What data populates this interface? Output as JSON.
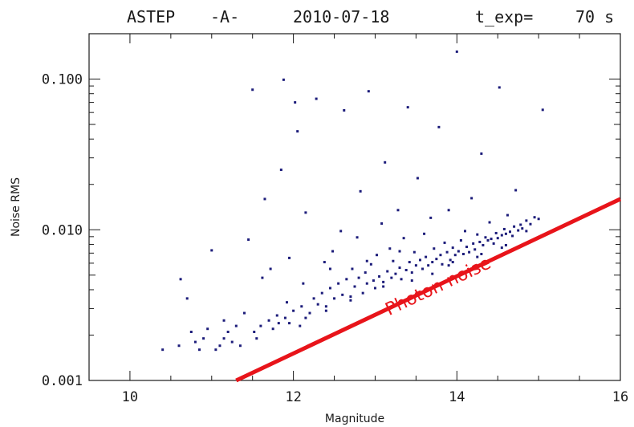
{
  "chart_data": {
    "type": "scatter",
    "title": {
      "name": "ASTEP",
      "camera": "-A-",
      "date": "2010-07-18",
      "exposure_label": "t_exp=",
      "exposure_value": "70 s"
    },
    "xlabel": "Magnitude",
    "ylabel": "Noise RMS",
    "x_scale": "linear",
    "y_scale": "log",
    "xlim": [
      9.5,
      16
    ],
    "ylim": [
      0.001,
      0.2
    ],
    "x_ticks": [
      10,
      12,
      14,
      16
    ],
    "x_tick_labels": [
      "10",
      "12",
      "14",
      "16"
    ],
    "y_ticks": [
      0.001,
      0.01,
      0.1
    ],
    "y_tick_labels": [
      "0.001",
      "0.010",
      "0.100"
    ],
    "grid": false,
    "marker_color": "#1c1c7a",
    "annotation": {
      "text": "Photon noise",
      "color": "#e8141a",
      "line": {
        "x": [
          11.3,
          16.0
        ],
        "y": [
          0.001,
          0.016
        ]
      }
    },
    "points": [
      [
        10.4,
        0.0016
      ],
      [
        10.6,
        0.0017
      ],
      [
        10.62,
        0.0047
      ],
      [
        10.7,
        0.0035
      ],
      [
        10.8,
        0.0018
      ],
      [
        10.85,
        0.0016
      ],
      [
        10.9,
        0.0019
      ],
      [
        10.95,
        0.0022
      ],
      [
        11.0,
        0.0073
      ],
      [
        11.05,
        0.0016
      ],
      [
        11.1,
        0.0017
      ],
      [
        11.15,
        0.0019
      ],
      [
        11.2,
        0.0021
      ],
      [
        11.25,
        0.0018
      ],
      [
        11.3,
        0.0023
      ],
      [
        11.35,
        0.0017
      ],
      [
        11.4,
        0.0028
      ],
      [
        11.45,
        0.0086
      ],
      [
        11.5,
        0.085
      ],
      [
        11.52,
        0.0021
      ],
      [
        11.55,
        0.0019
      ],
      [
        11.6,
        0.0023
      ],
      [
        11.62,
        0.0048
      ],
      [
        11.65,
        0.016
      ],
      [
        11.7,
        0.0025
      ],
      [
        11.72,
        0.0055
      ],
      [
        11.75,
        0.0022
      ],
      [
        11.8,
        0.0027
      ],
      [
        11.82,
        0.0024
      ],
      [
        11.85,
        0.025
      ],
      [
        11.88,
        0.099
      ],
      [
        11.9,
        0.0026
      ],
      [
        11.92,
        0.0033
      ],
      [
        11.95,
        0.0065
      ],
      [
        12.0,
        0.0029
      ],
      [
        12.02,
        0.07
      ],
      [
        12.05,
        0.045
      ],
      [
        12.08,
        0.0023
      ],
      [
        12.1,
        0.0031
      ],
      [
        12.12,
        0.0044
      ],
      [
        12.15,
        0.013
      ],
      [
        12.2,
        0.0028
      ],
      [
        12.25,
        0.0035
      ],
      [
        12.28,
        0.074
      ],
      [
        12.3,
        0.0032
      ],
      [
        12.35,
        0.0038
      ],
      [
        12.38,
        0.0061
      ],
      [
        12.4,
        0.0029
      ],
      [
        12.45,
        0.0041
      ],
      [
        12.48,
        0.0072
      ],
      [
        12.5,
        0.0035
      ],
      [
        12.55,
        0.0044
      ],
      [
        12.58,
        0.0098
      ],
      [
        12.6,
        0.0037
      ],
      [
        12.62,
        0.062
      ],
      [
        12.65,
        0.0047
      ],
      [
        12.7,
        0.0036
      ],
      [
        12.72,
        0.0055
      ],
      [
        12.75,
        0.0042
      ],
      [
        12.78,
        0.0089
      ],
      [
        12.8,
        0.0048
      ],
      [
        12.82,
        0.018
      ],
      [
        12.85,
        0.0038
      ],
      [
        12.88,
        0.0052
      ],
      [
        12.9,
        0.0044
      ],
      [
        12.92,
        0.083
      ],
      [
        12.95,
        0.0059
      ],
      [
        12.98,
        0.0046
      ],
      [
        13.0,
        0.0041
      ],
      [
        13.02,
        0.0068
      ],
      [
        13.05,
        0.0049
      ],
      [
        13.08,
        0.011
      ],
      [
        13.1,
        0.0045
      ],
      [
        13.12,
        0.028
      ],
      [
        13.15,
        0.0053
      ],
      [
        13.18,
        0.0075
      ],
      [
        13.2,
        0.0048
      ],
      [
        13.22,
        0.0062
      ],
      [
        13.25,
        0.0051
      ],
      [
        13.28,
        0.0135
      ],
      [
        13.3,
        0.0056
      ],
      [
        13.32,
        0.0047
      ],
      [
        13.35,
        0.0088
      ],
      [
        13.38,
        0.0054
      ],
      [
        13.4,
        0.065
      ],
      [
        13.42,
        0.0061
      ],
      [
        13.45,
        0.0052
      ],
      [
        13.48,
        0.0071
      ],
      [
        13.5,
        0.0058
      ],
      [
        13.52,
        0.022
      ],
      [
        13.55,
        0.0063
      ],
      [
        13.58,
        0.0055
      ],
      [
        13.6,
        0.0094
      ],
      [
        13.62,
        0.0066
      ],
      [
        13.65,
        0.0058
      ],
      [
        13.68,
        0.012
      ],
      [
        13.7,
        0.0061
      ],
      [
        13.72,
        0.0075
      ],
      [
        13.75,
        0.0064
      ],
      [
        13.78,
        0.048
      ],
      [
        13.8,
        0.0068
      ],
      [
        13.82,
        0.0059
      ],
      [
        13.85,
        0.0082
      ],
      [
        13.88,
        0.0071
      ],
      [
        13.9,
        0.0135
      ],
      [
        13.92,
        0.0063
      ],
      [
        13.95,
        0.0076
      ],
      [
        13.98,
        0.0068
      ],
      [
        14.0,
        0.152
      ],
      [
        14.02,
        0.0072
      ],
      [
        14.05,
        0.0085
      ],
      [
        14.08,
        0.0069
      ],
      [
        14.1,
        0.0098
      ],
      [
        14.12,
        0.0077
      ],
      [
        14.15,
        0.0071
      ],
      [
        14.18,
        0.0162
      ],
      [
        14.2,
        0.0081
      ],
      [
        14.22,
        0.0074
      ],
      [
        14.25,
        0.0093
      ],
      [
        14.28,
        0.0083
      ],
      [
        14.3,
        0.032
      ],
      [
        14.32,
        0.0079
      ],
      [
        14.35,
        0.0089
      ],
      [
        14.38,
        0.0085
      ],
      [
        14.4,
        0.0112
      ],
      [
        14.42,
        0.0087
      ],
      [
        14.45,
        0.0081
      ],
      [
        14.48,
        0.0095
      ],
      [
        14.5,
        0.0088
      ],
      [
        14.52,
        0.088
      ],
      [
        14.55,
        0.0092
      ],
      [
        14.58,
        0.0101
      ],
      [
        14.6,
        0.0094
      ],
      [
        14.62,
        0.0125
      ],
      [
        14.65,
        0.0097
      ],
      [
        14.68,
        0.0091
      ],
      [
        14.7,
        0.0105
      ],
      [
        14.72,
        0.0183
      ],
      [
        14.75,
        0.0099
      ],
      [
        14.78,
        0.0108
      ],
      [
        14.8,
        0.0102
      ],
      [
        14.85,
        0.0115
      ],
      [
        14.9,
        0.0109
      ],
      [
        14.95,
        0.0121
      ],
      [
        15.0,
        0.0118
      ],
      [
        15.05,
        0.0625
      ],
      [
        10.75,
        0.0021
      ],
      [
        11.15,
        0.0025
      ],
      [
        12.45,
        0.0055
      ],
      [
        12.9,
        0.0062
      ],
      [
        13.3,
        0.0072
      ],
      [
        13.7,
        0.0051
      ],
      [
        13.9,
        0.0058
      ],
      [
        14.3,
        0.0069
      ],
      [
        14.6,
        0.0079
      ],
      [
        12.7,
        0.0034
      ],
      [
        12.4,
        0.0031
      ],
      [
        13.1,
        0.0042
      ],
      [
        13.45,
        0.0046
      ],
      [
        13.95,
        0.0061
      ],
      [
        14.25,
        0.0066
      ],
      [
        14.55,
        0.0076
      ],
      [
        14.85,
        0.0098
      ],
      [
        12.15,
        0.0026
      ],
      [
        11.95,
        0.0024
      ]
    ]
  }
}
